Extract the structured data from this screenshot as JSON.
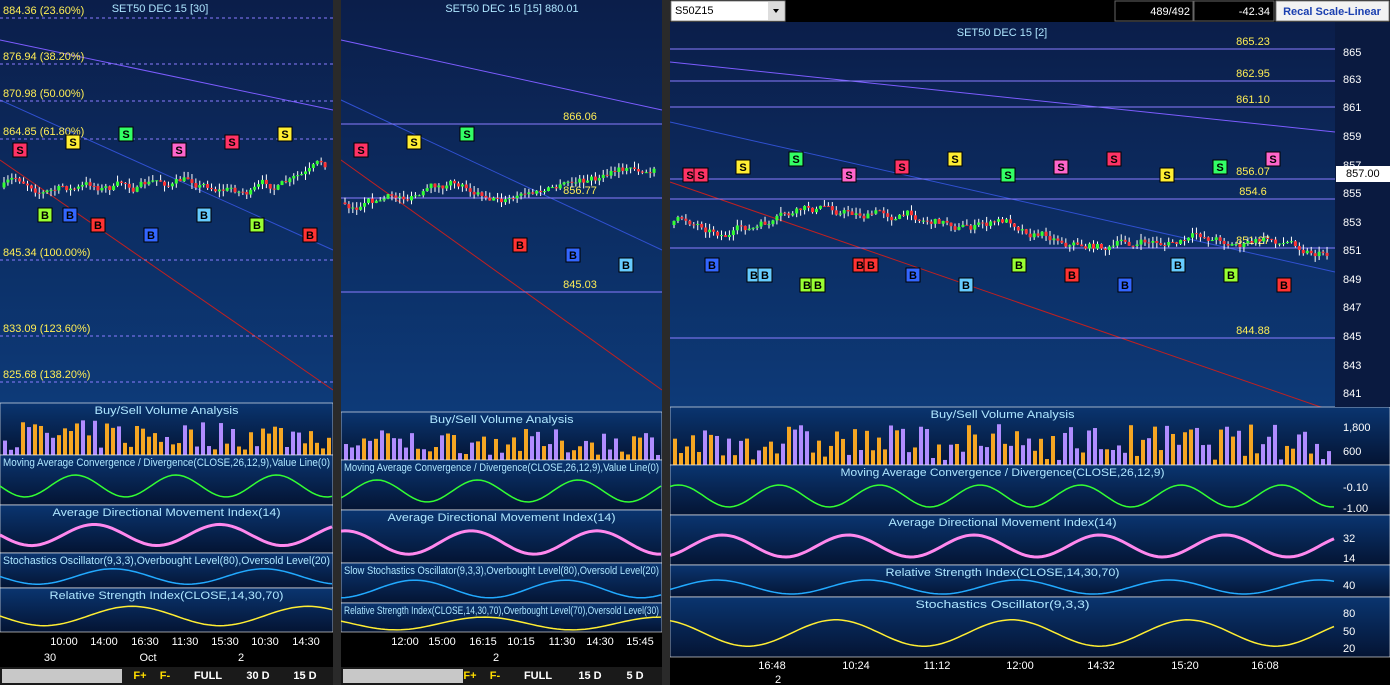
{
  "panels": [
    {
      "title": "SET50 DEC 15   [30]",
      "levels": [
        "884.36 (23.60%)",
        "876.94 (38.20%)",
        "870.98 (50.00%)",
        "864.85 (61.80%)",
        "845.34 (100.00%)",
        "833.09 (123.60%)",
        "825.68 (138.20%)"
      ],
      "signals": [
        "S",
        "S",
        "S",
        "S",
        "S",
        "S",
        "B",
        "B",
        "B",
        "B",
        "B",
        "B",
        "B"
      ],
      "indicators": [
        "Buy/Sell Volume Analysis",
        "Moving Average Convergence / Divergence(CLOSE,26,12,9),Value Line(0)",
        "Average Directional Movement Index(14)",
        "Stochastics Oscillator(9,3,3),Overbought Level(80),Oversold Level(20)",
        "Relative Strength Index(CLOSE,14,30,70)"
      ],
      "time_labels": [
        "10:00",
        "14:00",
        "16:30",
        "11:30",
        "15:30",
        "10:30",
        "14:30"
      ],
      "date_labels": [
        "30",
        "Oct",
        "2"
      ],
      "buttons": [
        "F+",
        "F-",
        "FULL",
        "30 D",
        "15 D"
      ]
    },
    {
      "title": "SET50 DEC 15   [15] 880.01",
      "levels": [
        "866.06",
        "856.77",
        "845.03"
      ],
      "signals": [
        "S",
        "S",
        "S",
        "B",
        "B",
        "B"
      ],
      "indicators": [
        "Buy/Sell Volume Analysis",
        "Moving Average Convergence / Divergence(CLOSE,26,12,9),Value Line(0)",
        "Average Directional Movement Index(14)",
        "Slow Stochastics Oscillator(9,3,3),Overbought Level(80),Oversold Level(20)",
        "Relative Strength Index(CLOSE,14,30,70),Overbought Level(70),Oversold Level(30)"
      ],
      "time_labels": [
        "12:00",
        "15:00",
        "16:15",
        "10:15",
        "11:30",
        "14:30",
        "15:45"
      ],
      "date_labels": [
        "2"
      ],
      "buttons": [
        "F+",
        "F-",
        "FULL",
        "15 D",
        "5 D"
      ]
    },
    {
      "title": "SET50 DEC 15   [2]",
      "toolbar": {
        "symbol": "S50Z15",
        "count": "489/492",
        "change": "-42.34",
        "button": "Recal Scale-Linear"
      },
      "levels": [
        "865.23",
        "862.95",
        "861.10",
        "856.07",
        "854.6",
        "851.27",
        "844.88"
      ],
      "price_ticks": [
        "865",
        "863",
        "861",
        "859",
        "857",
        "855",
        "853",
        "851",
        "849",
        "847",
        "845",
        "843",
        "841"
      ],
      "last_price": "857.00",
      "signals": [
        "S",
        "S",
        "S",
        "S",
        "S",
        "S",
        "S",
        "S",
        "S",
        "S",
        "S",
        "S",
        "S",
        "B",
        "B",
        "B",
        "B",
        "B",
        "B",
        "B",
        "B",
        "B",
        "B",
        "B",
        "B",
        "B",
        "B",
        "B"
      ],
      "indicators": [
        "Buy/Sell Volume Analysis",
        "Moving Average Convergence / Divergence(CLOSE,26,12,9)",
        "Average Directional Movement Index(14)",
        "Relative Strength Index(CLOSE,14,30,70)",
        "Stochastics Oscillator(9,3,3)"
      ],
      "indicator_ticks": [
        [
          "1,800",
          "600"
        ],
        [
          "-0.10",
          "-1.00"
        ],
        [
          "32",
          "14"
        ],
        [
          "40"
        ],
        [
          "80",
          "50",
          "20"
        ]
      ],
      "time_labels": [
        "16:48",
        "10:24",
        "11:12",
        "12:00",
        "14:32",
        "15:20",
        "16:08"
      ],
      "date_labels": [
        "2"
      ]
    }
  ]
}
